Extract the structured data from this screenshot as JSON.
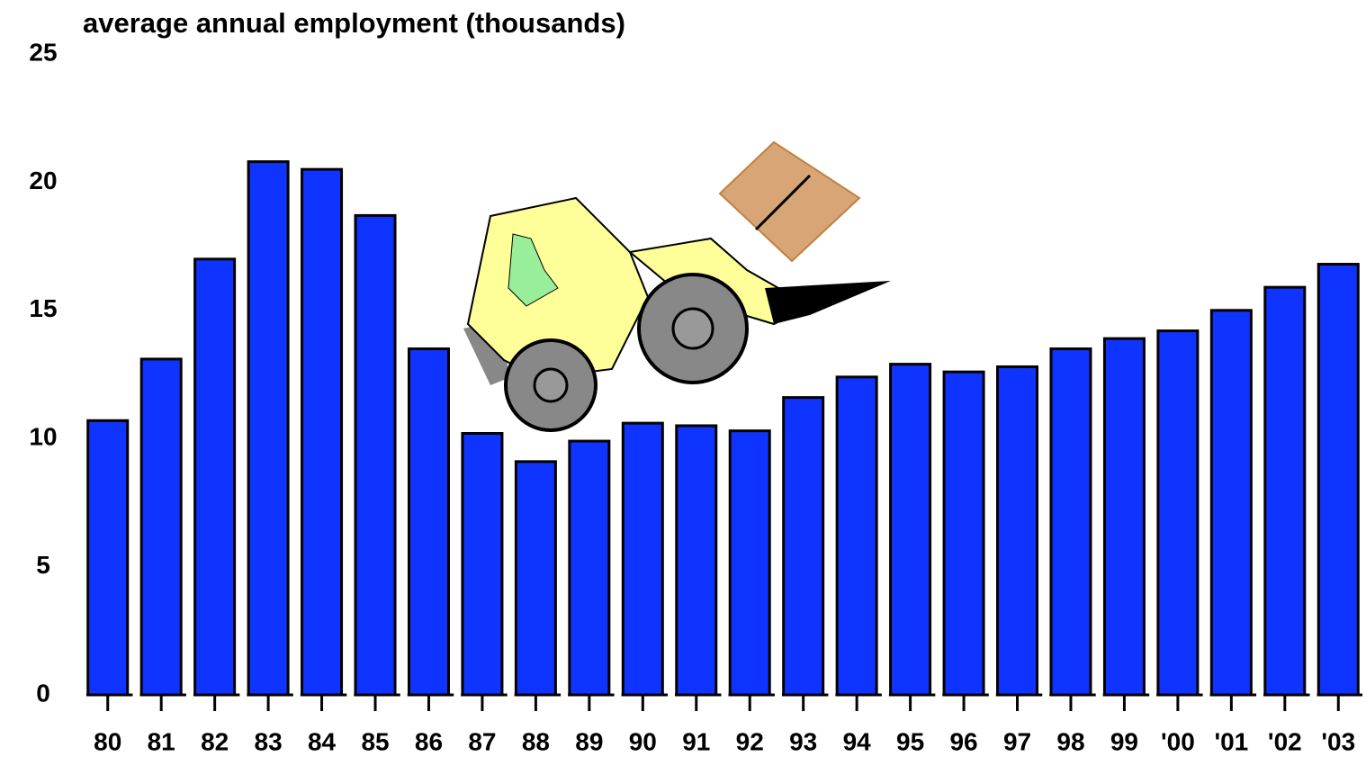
{
  "chart_data": {
    "type": "bar",
    "title": "average annual employment (thousands)",
    "categories": [
      "80",
      "81",
      "82",
      "83",
      "84",
      "85",
      "86",
      "87",
      "88",
      "89",
      "90",
      "91",
      "92",
      "93",
      "94",
      "95",
      "96",
      "97",
      "98",
      "99",
      "'00",
      "'01",
      "'02",
      "'03"
    ],
    "values": [
      10.7,
      13.1,
      17.0,
      20.8,
      20.5,
      18.7,
      13.5,
      10.2,
      9.1,
      9.9,
      10.6,
      10.5,
      10.3,
      11.6,
      12.4,
      12.9,
      12.6,
      12.8,
      13.5,
      13.9,
      14.2,
      15.0,
      15.9,
      16.8
    ],
    "color": "#1034ff",
    "ylim": [
      0,
      25
    ],
    "yticks": [
      0,
      5,
      10,
      15,
      20,
      25
    ],
    "grid": false
  }
}
